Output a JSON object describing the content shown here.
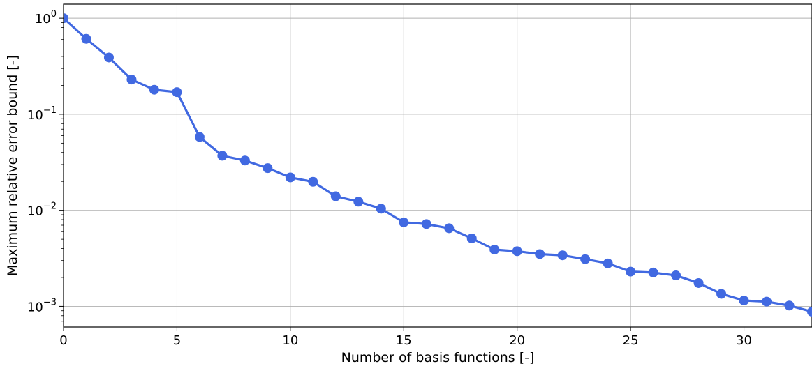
{
  "chart_data": {
    "type": "line",
    "xlabel": "Number of basis functions [-]",
    "ylabel": "Maximum relative error bound [-]",
    "x_scale": "linear",
    "y_scale": "log",
    "xlim": [
      0,
      33
    ],
    "ylim": [
      0.00061,
      1.4
    ],
    "grid": true,
    "color": "#4169e1",
    "x_ticks": [
      {
        "value": 0,
        "label": "0"
      },
      {
        "value": 5,
        "label": "5"
      },
      {
        "value": 10,
        "label": "10"
      },
      {
        "value": 15,
        "label": "15"
      },
      {
        "value": 20,
        "label": "20"
      },
      {
        "value": 25,
        "label": "25"
      },
      {
        "value": 30,
        "label": "30"
      }
    ],
    "y_ticks": [
      {
        "value": 1,
        "base": "10",
        "exp": "0"
      },
      {
        "value": 0.1,
        "base": "10",
        "exp": "−1"
      },
      {
        "value": 0.01,
        "base": "10",
        "exp": "−2"
      },
      {
        "value": 0.001,
        "base": "10",
        "exp": "−3"
      }
    ],
    "series": [
      {
        "x": [
          0,
          1,
          2,
          3,
          4,
          5,
          6,
          7,
          8,
          9,
          10,
          11,
          12,
          13,
          14,
          15,
          16,
          17,
          18,
          19,
          20,
          21,
          22,
          23,
          24,
          25,
          26,
          27,
          28,
          29,
          30,
          31,
          32,
          33
        ],
        "values": [
          1.0,
          0.61,
          0.39,
          0.23,
          0.18,
          0.17,
          0.058,
          0.037,
          0.033,
          0.0275,
          0.022,
          0.0198,
          0.014,
          0.0123,
          0.0104,
          0.0075,
          0.0072,
          0.0065,
          0.0051,
          0.0039,
          0.00375,
          0.0035,
          0.0034,
          0.0031,
          0.0028,
          0.0023,
          0.00225,
          0.0021,
          0.00175,
          0.00135,
          0.00115,
          0.00112,
          0.00102,
          0.00088
        ]
      }
    ]
  }
}
